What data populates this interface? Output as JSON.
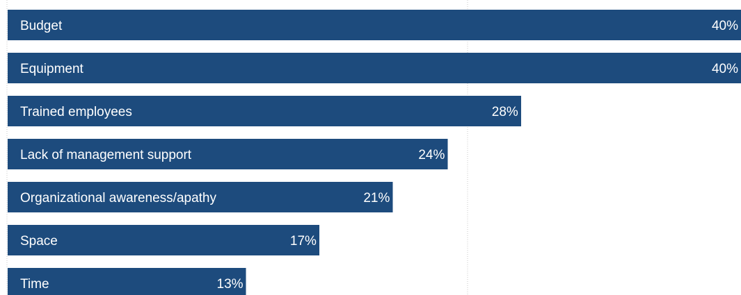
{
  "chart_data": {
    "type": "bar",
    "orientation": "horizontal",
    "categories": [
      "Budget",
      "Equipment",
      "Trained employees",
      "Lack of management support",
      "Organizational awareness/apathy",
      "Space",
      "Time"
    ],
    "values": [
      40,
      40,
      28,
      24,
      21,
      17,
      13
    ],
    "value_suffix": "%",
    "xlim": [
      0,
      40
    ],
    "grid": "vertical dotted lines",
    "bar_color": "#1d4b7d",
    "label_color": "#ffffff",
    "gridline_color": "#c8c8c8"
  }
}
